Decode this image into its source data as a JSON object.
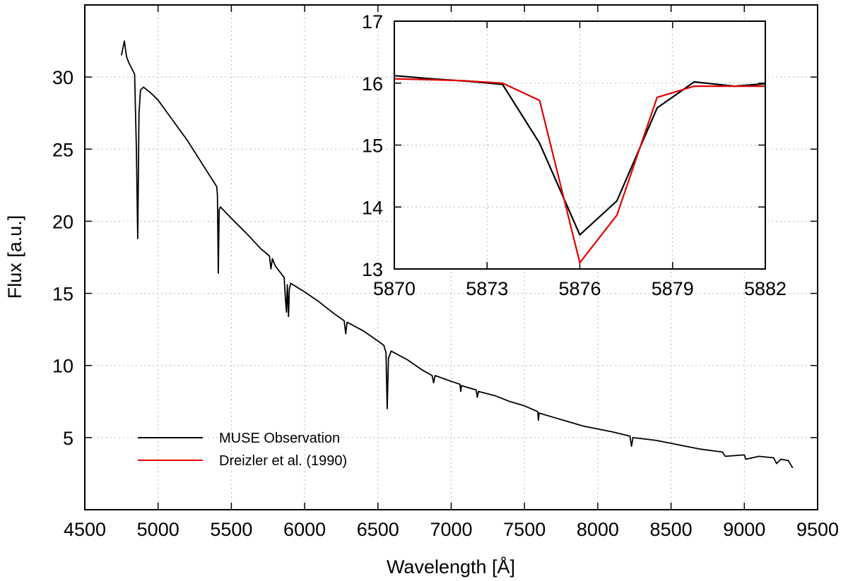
{
  "chart_data": [
    {
      "type": "line",
      "xlabel": "Wavelength [Å]",
      "ylabel": "Flux [a.u.]",
      "xlim": [
        4500,
        9500
      ],
      "xticks": [
        4500,
        5000,
        5500,
        6000,
        6500,
        7000,
        7500,
        8000,
        8500,
        9000,
        9500
      ],
      "ylim": [
        0,
        35
      ],
      "yticks": [
        5,
        10,
        15,
        20,
        25,
        30
      ],
      "grid": true,
      "legend": "lower left",
      "series": [
        {
          "name": "MUSE Observation",
          "color": "#000000",
          "x": [
            4750,
            4760,
            4770,
            4785,
            4800,
            4820,
            4840,
            4852,
            4861,
            4870,
            4880,
            4900,
            4950,
            5000,
            5100,
            5200,
            5300,
            5400,
            5405,
            5411,
            5417,
            5425,
            5500,
            5600,
            5700,
            5760,
            5770,
            5780,
            5800,
            5860,
            5870,
            5876,
            5882,
            5890,
            5896,
            5905,
            6000,
            6100,
            6200,
            6270,
            6280,
            6290,
            6400,
            6500,
            6540,
            6555,
            6563,
            6572,
            6590,
            6700,
            6800,
            6870,
            6880,
            6890,
            7000,
            7060,
            7065,
            7070,
            7170,
            7178,
            7186,
            7300,
            7400,
            7500,
            7590,
            7595,
            7600,
            7700,
            7800,
            7900,
            8000,
            8100,
            8220,
            8230,
            8240,
            8400,
            8500,
            8600,
            8700,
            8850,
            8870,
            9000,
            9010,
            9100,
            9200,
            9220,
            9250,
            9300,
            9330
          ],
          "values": [
            31.5,
            32.0,
            32.5,
            31.4,
            31.0,
            30.6,
            30.2,
            25.0,
            18.8,
            27.5,
            29.1,
            29.3,
            28.9,
            28.4,
            27.0,
            25.6,
            24.0,
            22.4,
            21.8,
            16.4,
            20.8,
            21.0,
            20.2,
            19.2,
            18.1,
            17.6,
            16.7,
            17.4,
            16.9,
            16.1,
            14.5,
            13.7,
            15.6,
            13.4,
            15.3,
            15.7,
            15.1,
            14.4,
            13.6,
            13.1,
            12.2,
            13.0,
            12.4,
            11.7,
            11.4,
            10.9,
            7.0,
            10.5,
            11.0,
            10.4,
            9.7,
            9.3,
            8.8,
            9.3,
            8.9,
            8.7,
            8.2,
            8.6,
            8.3,
            7.8,
            8.2,
            7.9,
            7.5,
            7.2,
            6.8,
            6.2,
            6.7,
            6.4,
            6.1,
            5.8,
            5.6,
            5.4,
            5.1,
            4.4,
            5.0,
            4.8,
            4.6,
            4.4,
            4.2,
            4.0,
            3.7,
            3.8,
            3.5,
            3.7,
            3.6,
            3.2,
            3.5,
            3.4,
            2.9
          ]
        }
      ]
    },
    {
      "type": "line",
      "xlim": [
        5870,
        5882
      ],
      "xticks": [
        5870,
        5873,
        5876,
        5879,
        5882
      ],
      "ylim": [
        13,
        17
      ],
      "yticks": [
        13,
        14,
        15,
        16,
        17
      ],
      "grid": true,
      "series": [
        {
          "name": "MUSE Observation",
          "color": "#000000",
          "x": [
            5870,
            5871.2,
            5872.4,
            5873.5,
            5874.7,
            5876,
            5877.2,
            5878.5,
            5879.7,
            5881,
            5882
          ],
          "values": [
            16.12,
            16.07,
            16.03,
            15.98,
            15.03,
            13.55,
            14.1,
            15.6,
            16.02,
            15.95,
            15.99
          ]
        },
        {
          "name": "Dreizler et al. (1990)",
          "color": "#e00000",
          "x": [
            5870,
            5872.2,
            5873.5,
            5874.7,
            5876,
            5877.2,
            5878.5,
            5879.7,
            5882
          ],
          "values": [
            16.07,
            16.04,
            16.0,
            15.72,
            13.1,
            13.87,
            15.77,
            15.95,
            15.95
          ]
        }
      ]
    }
  ]
}
